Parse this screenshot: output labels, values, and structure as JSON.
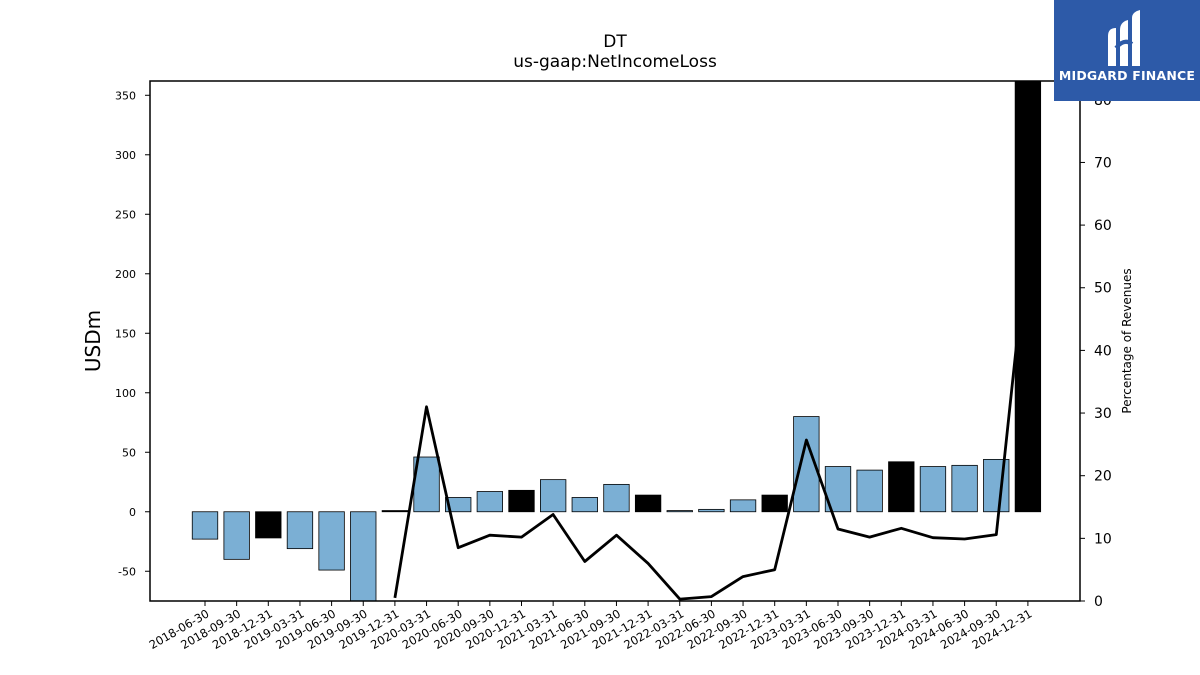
{
  "header": {
    "title": "DT",
    "subtitle": "us-gaap:NetIncomeLoss"
  },
  "logo": {
    "name": "MIDGARD FINANCE",
    "background": "#2d5aa8"
  },
  "colors": {
    "quarter_bar": "#7bafd4",
    "annual_bar": "#000000",
    "line": "#000000"
  },
  "chart_data": {
    "type": "bar",
    "title": "DT",
    "subtitle": "us-gaap:NetIncomeLoss",
    "ylabel": "USDm",
    "y2label": "Percentage of Revenues",
    "ylim": [
      -75,
      362
    ],
    "y2lim": [
      0,
      83
    ],
    "yticks": [
      -50,
      0,
      50,
      100,
      150,
      200,
      250,
      300,
      350
    ],
    "y2ticks": [
      0,
      10,
      20,
      30,
      40,
      50,
      60,
      70,
      80
    ],
    "categories": [
      "2018-06-30",
      "2018-09-30",
      "2018-12-31",
      "2019-03-31",
      "2019-06-30",
      "2019-09-30",
      "2019-12-31",
      "2020-03-31",
      "2020-06-30",
      "2020-09-30",
      "2020-12-31",
      "2021-03-31",
      "2021-06-30",
      "2021-09-30",
      "2021-12-31",
      "2022-03-31",
      "2022-06-30",
      "2022-09-30",
      "2022-12-31",
      "2023-03-31",
      "2023-06-30",
      "2023-09-30",
      "2023-12-31",
      "2024-03-31",
      "2024-06-30",
      "2024-09-30",
      "2024-12-31"
    ],
    "series": [
      {
        "type": "bar",
        "values": [
          -23,
          -40,
          -22,
          -31,
          -49,
          -80,
          1,
          46,
          12,
          17,
          18,
          27,
          12,
          23,
          14,
          1,
          2,
          10,
          14,
          80,
          38,
          35,
          42,
          38,
          39,
          44,
          362
        ],
        "annual": [
          false,
          false,
          true,
          false,
          false,
          false,
          true,
          false,
          false,
          false,
          true,
          false,
          false,
          false,
          true,
          false,
          false,
          false,
          true,
          false,
          false,
          false,
          true,
          false,
          false,
          false,
          true
        ]
      },
      {
        "type": "line",
        "axis": "right",
        "values": [
          null,
          null,
          null,
          null,
          null,
          null,
          0.5,
          31,
          8.5,
          10.5,
          10.2,
          13.8,
          6.3,
          10.5,
          6.0,
          0.3,
          0.7,
          3.9,
          5.0,
          25.7,
          11.5,
          10.2,
          11.6,
          10.1,
          9.9,
          10.6,
          58
        ]
      }
    ],
    "grid": false
  }
}
